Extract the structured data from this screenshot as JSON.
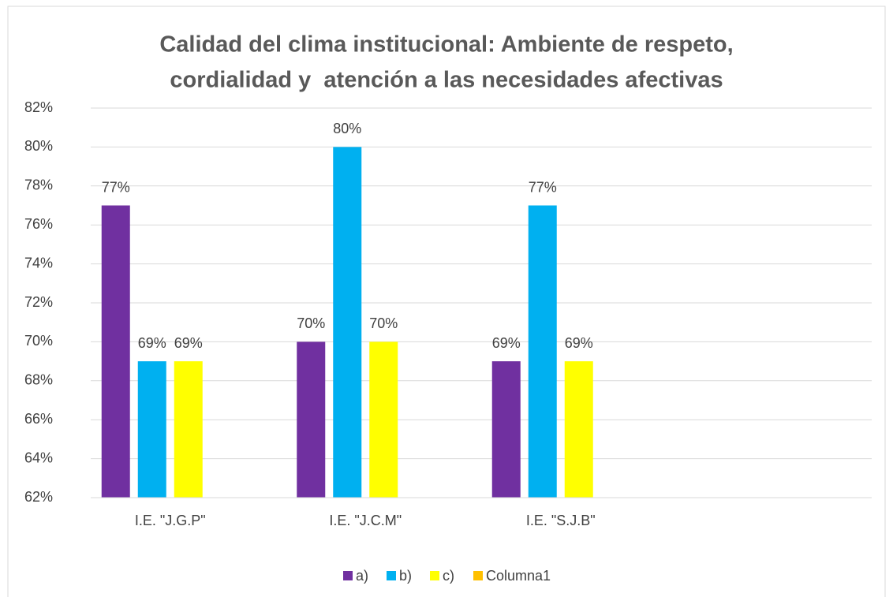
{
  "chart_data": {
    "type": "bar",
    "title": [
      "Calidad del clima institucional: Ambiente de respeto,",
      "cordialidad y  atención a las necesidades afectivas"
    ],
    "categories": [
      "I.E. \"J.G.P\"",
      "I.E. \"J.C.M\"",
      "I.E. \"S.J.B\"",
      null
    ],
    "series": [
      {
        "name": "a)",
        "color": "#7030a0",
        "values": [
          77,
          70,
          69,
          null
        ],
        "value_labels": [
          "77%",
          "70%",
          "69%",
          null
        ]
      },
      {
        "name": "b)",
        "color": "#00b0f0",
        "values": [
          69,
          80,
          77,
          null
        ],
        "value_labels": [
          "69%",
          "80%",
          "77%",
          null
        ]
      },
      {
        "name": "c)",
        "color": "#ffff00",
        "values": [
          69,
          70,
          69,
          null
        ],
        "value_labels": [
          "69%",
          "70%",
          "69%",
          null
        ]
      },
      {
        "name": "Columna1",
        "color": "#ffc000",
        "values": [
          null,
          null,
          null,
          null
        ],
        "value_labels": [
          null,
          null,
          null,
          null
        ]
      }
    ],
    "ylim": [
      62,
      82
    ],
    "yticks": [
      {
        "value": 62,
        "label": "62%"
      },
      {
        "value": 64,
        "label": "64%"
      },
      {
        "value": 66,
        "label": "66%"
      },
      {
        "value": 68,
        "label": "68%"
      },
      {
        "value": 70,
        "label": "70%"
      },
      {
        "value": 72,
        "label": "72%"
      },
      {
        "value": 74,
        "label": "74%"
      },
      {
        "value": 76,
        "label": "76%"
      },
      {
        "value": 78,
        "label": "78%"
      },
      {
        "value": 80,
        "label": "80%"
      },
      {
        "value": 82,
        "label": "82%"
      }
    ],
    "grid": true,
    "legend": "bottom"
  }
}
